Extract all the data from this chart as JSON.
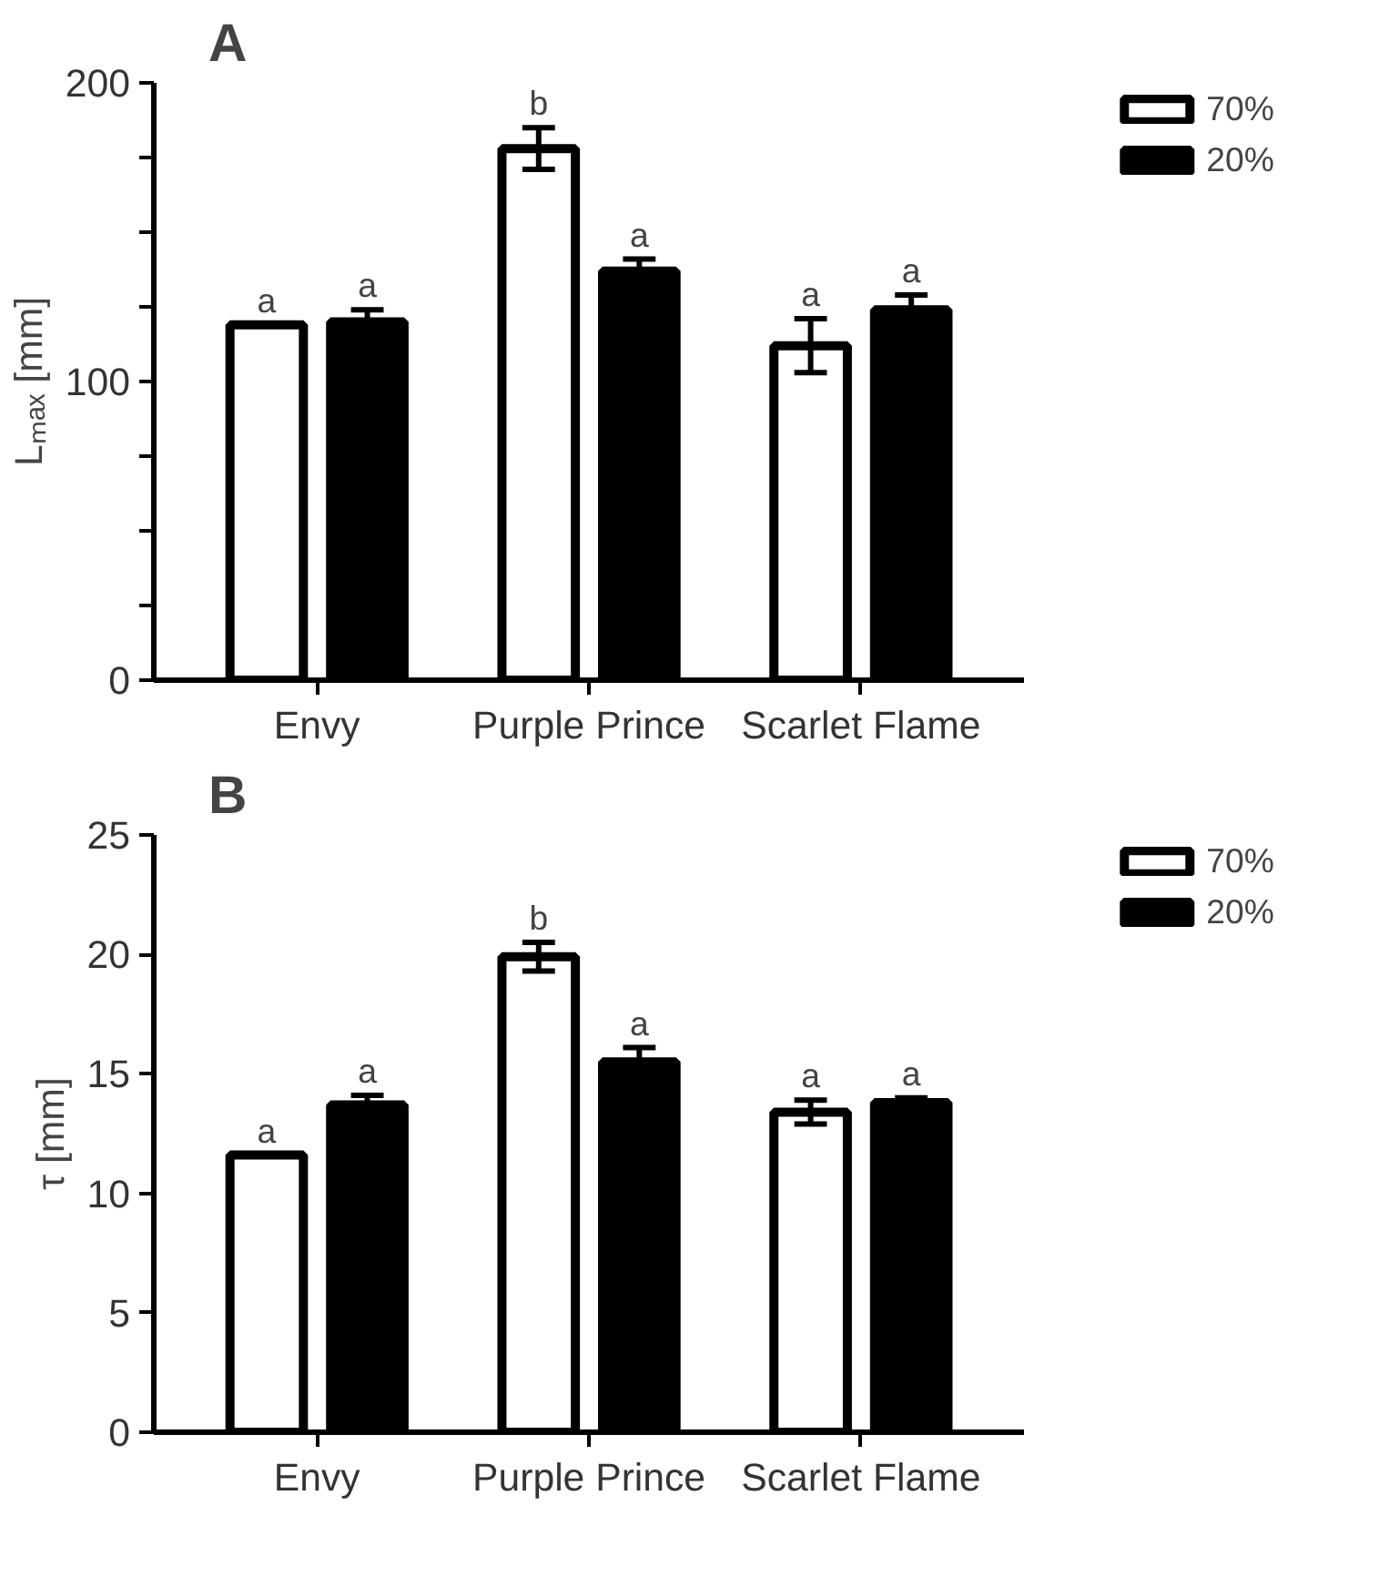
{
  "chart_data": [
    {
      "type": "bar",
      "title": "A",
      "ylabel": "Lₘₐₓ [mm]",
      "categories": [
        "Envy",
        "Purple Prince",
        "Scarlet Flame"
      ],
      "series": [
        {
          "name": "70%",
          "color": "#ffffff",
          "values": [
            119,
            178,
            112
          ],
          "errors": [
            null,
            7,
            9
          ],
          "value_labels": [
            "a",
            "b",
            "a"
          ]
        },
        {
          "name": "20%",
          "color": "#000000",
          "values": [
            120,
            137,
            124
          ],
          "errors": [
            4,
            4,
            5
          ],
          "value_labels": [
            "a",
            "a",
            "a"
          ]
        }
      ],
      "ylim": [
        0,
        200
      ],
      "yticks": [
        0,
        {
          "value": 25,
          "label": null
        },
        {
          "value": 50,
          "label": null
        },
        {
          "value": 75,
          "label": null
        },
        100,
        {
          "value": 125,
          "label": null
        },
        {
          "value": 150,
          "label": null
        },
        {
          "value": 175,
          "label": null
        },
        200
      ],
      "grid": false,
      "legend": "top right"
    },
    {
      "type": "bar",
      "title": "B",
      "ylabel": "τ [mm]",
      "categories": [
        "Envy",
        "Purple Prince",
        "Scarlet Flame"
      ],
      "series": [
        {
          "name": "70%",
          "color": "#ffffff",
          "values": [
            11.6,
            19.9,
            13.4
          ],
          "errors": [
            null,
            0.6,
            0.5
          ],
          "value_labels": [
            "a",
            "b",
            "a"
          ]
        },
        {
          "name": "20%",
          "color": "#000000",
          "values": [
            13.7,
            15.5,
            13.8
          ],
          "errors": [
            0.4,
            0.6,
            0.2
          ],
          "value_labels": [
            "a",
            "a",
            "a"
          ]
        }
      ],
      "ylim": [
        0,
        25
      ],
      "yticks": [
        0,
        5,
        10,
        15,
        20,
        25
      ],
      "grid": false,
      "legend": "top right"
    }
  ]
}
